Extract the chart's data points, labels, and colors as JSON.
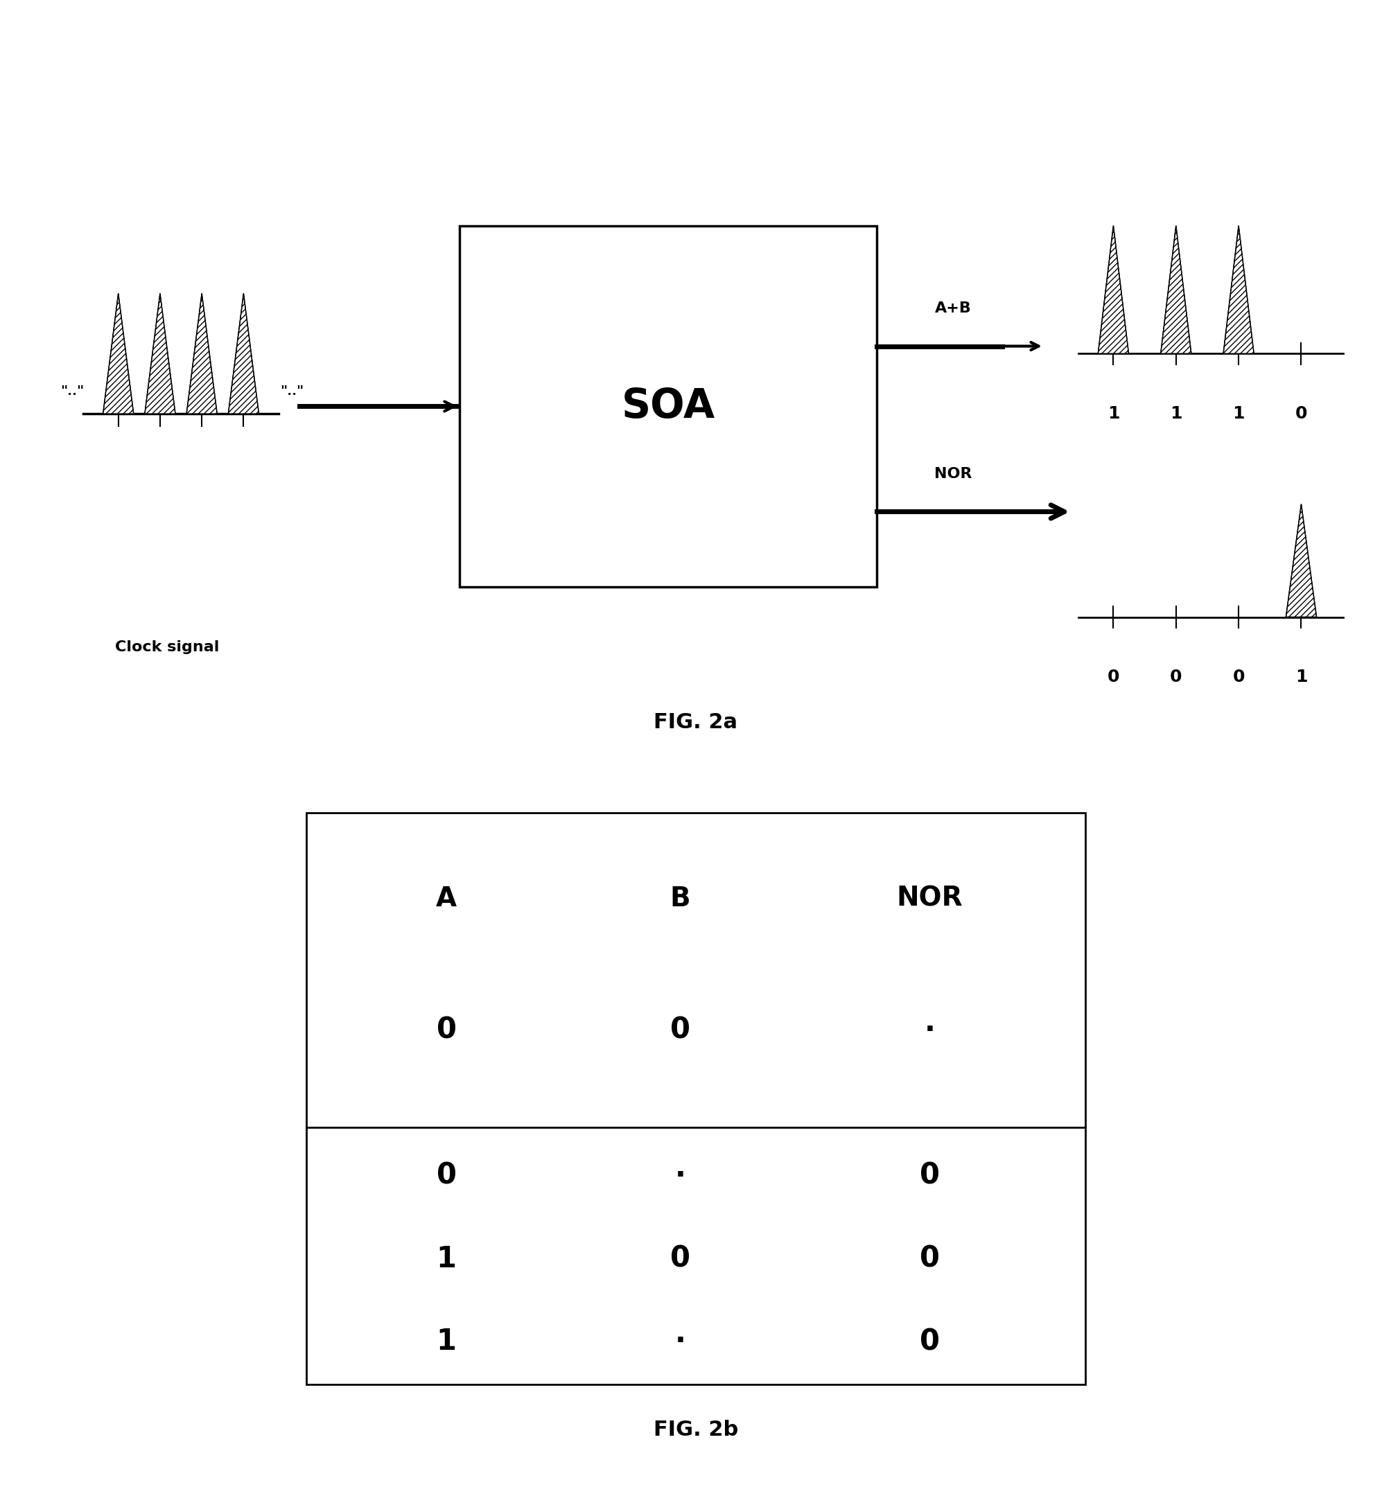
{
  "fig_width": 20.08,
  "fig_height": 21.72,
  "background_color": "#ffffff",
  "fig2a_label": "FIG. 2a",
  "fig2b_label": "FIG. 2b",
  "soa_label": "SOA",
  "clock_label": "Clock signal",
  "apb_label": "A+B",
  "nor_label": "NOR",
  "apb_bits": [
    "1",
    "1",
    "1",
    "0"
  ],
  "nor_bits": [
    "0",
    "0",
    "0",
    "1"
  ],
  "table_headers": [
    "A",
    "B",
    "NOR"
  ],
  "table_row0": [
    "0",
    "0",
    "·"
  ],
  "table_row1": [
    "0",
    "·",
    "0"
  ],
  "table_row2": [
    "1",
    "0",
    "0"
  ],
  "table_row3": [
    "1",
    "·",
    "0"
  ]
}
